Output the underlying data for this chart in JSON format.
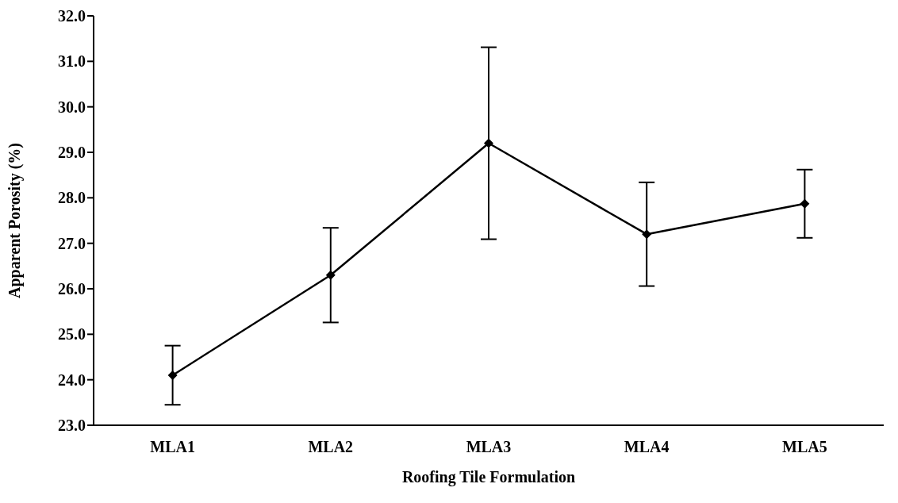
{
  "chart_data": {
    "type": "line",
    "xlabel": "Roofing Tile Formulation",
    "ylabel": "Apparent  Porosity (%)",
    "categories": [
      "MLA1",
      "MLA2",
      "MLA3",
      "MLA4",
      "MLA5"
    ],
    "series": [
      {
        "color": "#000000",
        "values": [
          24.1,
          26.3,
          29.2,
          27.2,
          27.87
        ],
        "errors": [
          0.65,
          1.04,
          2.11,
          1.14,
          0.75
        ]
      }
    ],
    "ylim": [
      23,
      32
    ],
    "yticks": [
      {
        "value": 23,
        "label": "23.0"
      },
      {
        "value": 24,
        "label": "24.0"
      },
      {
        "value": 25,
        "label": "25.0"
      },
      {
        "value": 26,
        "label": "26.0"
      },
      {
        "value": 27,
        "label": "27.0"
      },
      {
        "value": 28,
        "label": "28.0"
      },
      {
        "value": 29,
        "label": "29.0"
      },
      {
        "value": 30,
        "label": "30.0"
      },
      {
        "value": 31,
        "label": "31.0"
      },
      {
        "value": 32,
        "label": "32.0"
      }
    ],
    "grid": false,
    "legend": false,
    "marker": "diamond",
    "line_style": "solid"
  }
}
